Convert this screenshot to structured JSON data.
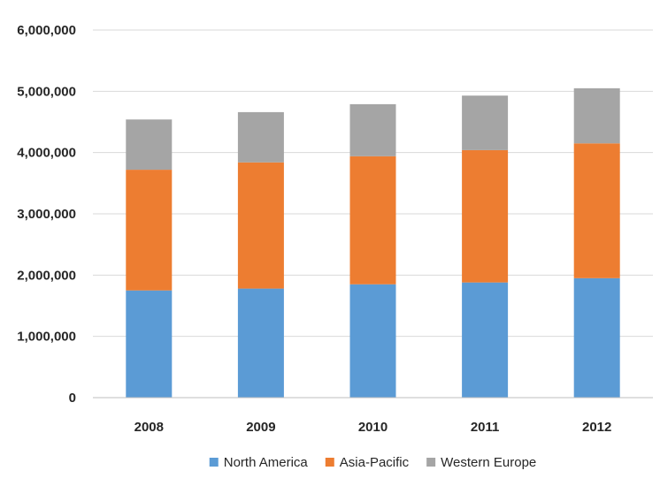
{
  "chart_data": {
    "type": "bar",
    "stacked": true,
    "title": "",
    "xlabel": "",
    "ylabel": "",
    "categories": [
      "2008",
      "2009",
      "2010",
      "2011",
      "2012"
    ],
    "series": [
      {
        "name": "North America",
        "color": "#5b9bd5",
        "values": [
          1750000,
          1780000,
          1850000,
          1880000,
          1950000
        ]
      },
      {
        "name": "Asia-Pacific",
        "color": "#ed7d31",
        "values": [
          1970000,
          2060000,
          2090000,
          2160000,
          2200000
        ]
      },
      {
        "name": "Western Europe",
        "color": "#a5a5a5",
        "values": [
          820000,
          820000,
          850000,
          890000,
          900000
        ]
      }
    ],
    "ylim": [
      0,
      6000000
    ],
    "yticks": [
      0,
      1000000,
      2000000,
      3000000,
      4000000,
      5000000,
      6000000
    ],
    "ytick_labels": [
      "0",
      "1,000,000",
      "2,000,000",
      "3,000,000",
      "4,000,000",
      "5,000,000",
      "6,000,000"
    ],
    "grid": true,
    "legend": "bottom-center"
  }
}
